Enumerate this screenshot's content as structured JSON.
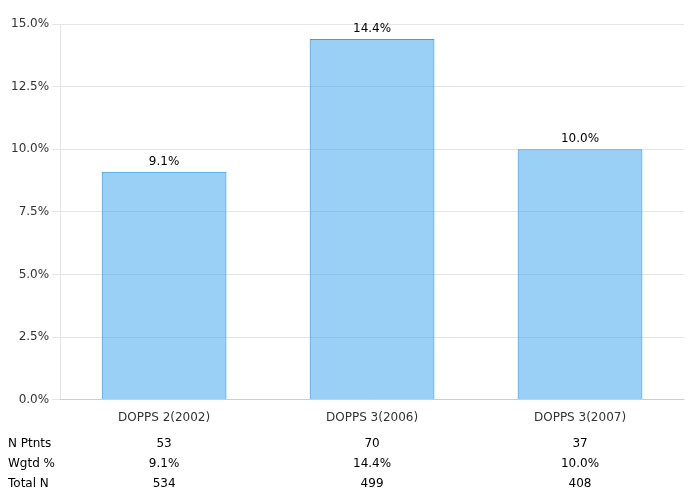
{
  "chart_data": {
    "type": "bar",
    "categories": [
      "DOPPS 2(2002)",
      "DOPPS 3(2006)",
      "DOPPS 3(2007)"
    ],
    "values": [
      9.1,
      14.4,
      10.0
    ],
    "value_labels": [
      "9.1%",
      "14.4%",
      "10.0%"
    ],
    "data_labels": true,
    "ylim": [
      0,
      15.0
    ],
    "yticks": [
      {
        "value": 0,
        "label": "0.0%"
      },
      {
        "value": 2.5,
        "label": "2.5%"
      },
      {
        "value": 5.0,
        "label": "5.0%"
      },
      {
        "value": 7.5,
        "label": "7.5%"
      },
      {
        "value": 10.0,
        "label": "10.0%"
      },
      {
        "value": 12.5,
        "label": "12.5%"
      },
      {
        "value": 15.0,
        "label": "15.0%"
      }
    ],
    "grid": true,
    "table_rows": [
      {
        "label": "N Ptnts",
        "values": [
          "53",
          "70",
          "37"
        ]
      },
      {
        "label": "Wgtd %",
        "values": [
          "9.1%",
          "14.4%",
          "10.0%"
        ]
      },
      {
        "label": "Total N",
        "values": [
          "534",
          "499",
          "408"
        ]
      }
    ]
  }
}
